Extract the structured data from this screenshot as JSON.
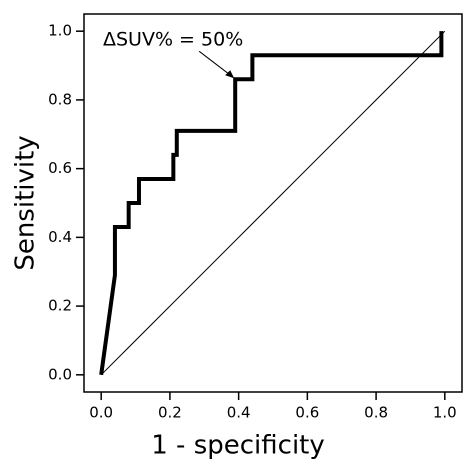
{
  "chart_data": {
    "type": "line",
    "x_label": "1 - specificity",
    "y_label": "Sensitivity",
    "xlim": [
      -0.05,
      1.05
    ],
    "ylim": [
      -0.05,
      1.05
    ],
    "xticks": [
      {
        "value": 0,
        "label": "0.0"
      },
      {
        "value": 0.2,
        "label": "0.2"
      },
      {
        "value": 0.4,
        "label": "0.4"
      },
      {
        "value": 0.6,
        "label": "0.6"
      },
      {
        "value": 0.8,
        "label": "0.8"
      },
      {
        "value": 1,
        "label": "1.0"
      }
    ],
    "yticks": [
      {
        "value": 0,
        "label": "0.0"
      },
      {
        "value": 0.2,
        "label": "0.2"
      },
      {
        "value": 0.4,
        "label": "0.4"
      },
      {
        "value": 0.6,
        "label": "0.6"
      },
      {
        "value": 0.8,
        "label": "0.8"
      },
      {
        "value": 1,
        "label": "1.0"
      }
    ],
    "series": [
      {
        "color": "#000000",
        "x": [
          0,
          0.04,
          0.04,
          0.08,
          0.08,
          0.11,
          0.11,
          0.21,
          0.21,
          0.22,
          0.22,
          0.39,
          0.39,
          0.44,
          0.44,
          0.99,
          0.99
        ],
        "values": [
          0,
          0.29,
          0.43,
          0.43,
          0.5,
          0.5,
          0.57,
          0.57,
          0.64,
          0.64,
          0.71,
          0.71,
          0.86,
          0.86,
          0.93,
          0.93,
          1.0
        ]
      }
    ],
    "reference_line": {
      "x": [
        0,
        1
      ],
      "y": [
        0,
        1
      ],
      "color": "#000000"
    },
    "annotation": {
      "text": "ΔSUV% = 50%",
      "x": 0.39,
      "y": 0.86
    }
  }
}
